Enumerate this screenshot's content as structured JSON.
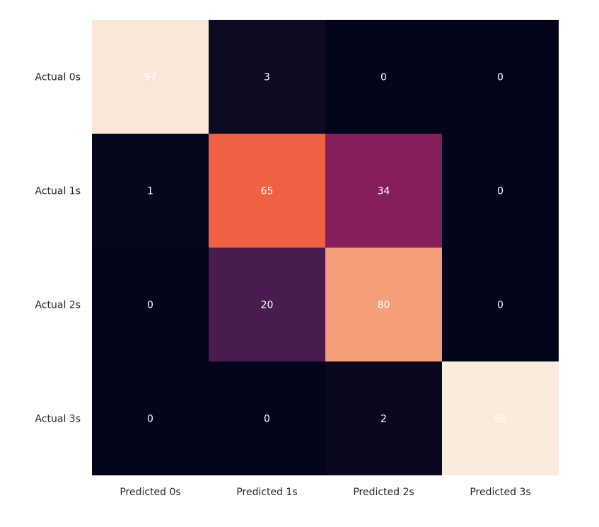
{
  "chart_data": {
    "type": "heatmap",
    "title": "",
    "xlabel": "",
    "ylabel": "",
    "x_categories": [
      "Predicted 0s",
      "Predicted 1s",
      "Predicted 2s",
      "Predicted 3s"
    ],
    "y_categories": [
      "Actual 0s",
      "Actual 1s",
      "Actual 2s",
      "Actual 3s"
    ],
    "values": [
      [
        97,
        3,
        0,
        0
      ],
      [
        1,
        65,
        34,
        0
      ],
      [
        0,
        20,
        80,
        0
      ],
      [
        0,
        0,
        2,
        98
      ]
    ],
    "value_range": [
      0,
      98
    ],
    "colormap": "rocket",
    "colors": {
      "low": "#03051a",
      "high": "#faebdd",
      "annotation_light": "#ffffff",
      "annotation_dark": "#262626"
    },
    "colorbar": false,
    "annotated": true
  }
}
